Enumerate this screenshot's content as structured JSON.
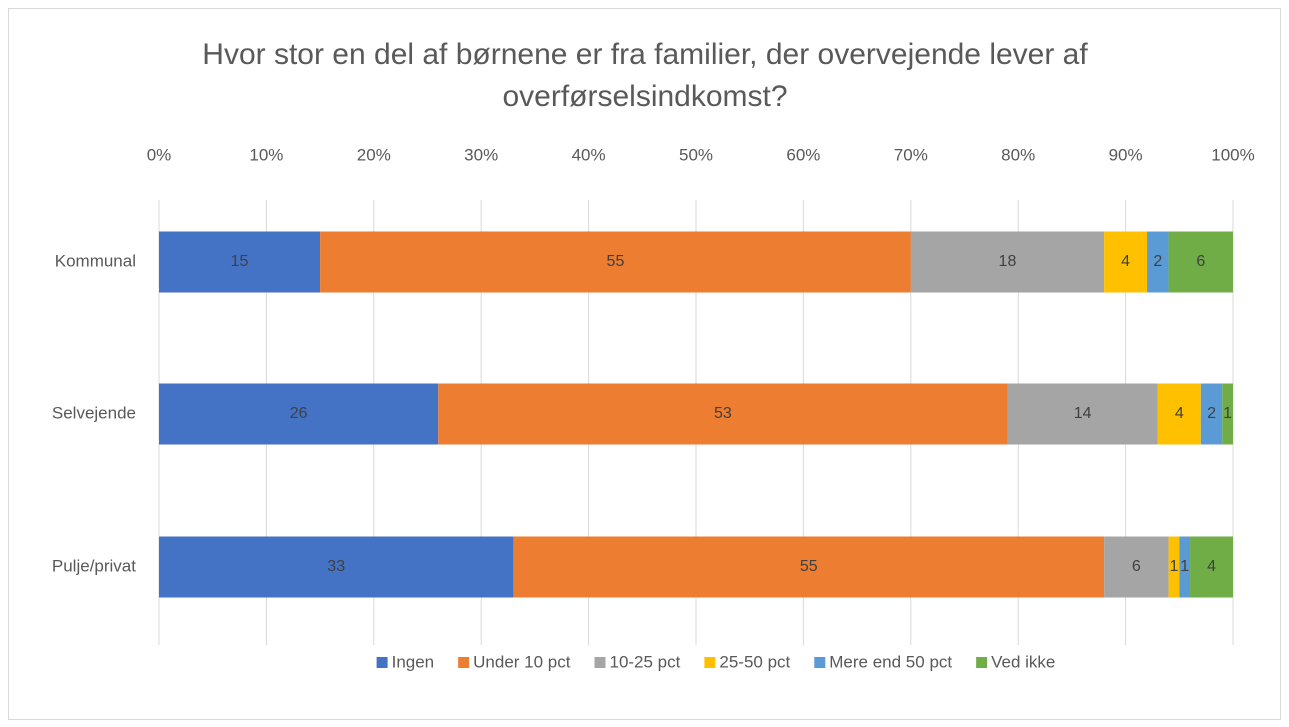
{
  "chart_data": {
    "type": "stacked-bar-horizontal",
    "title": "Hvor stor en del af børnene er fra familier, der overvejende lever af overførselsindkomst?",
    "categories": [
      "Kommunal",
      "Selvejende",
      "Pulje/privat"
    ],
    "series": [
      {
        "name": "Ingen",
        "color": "#4472c4",
        "values": [
          15,
          26,
          33
        ]
      },
      {
        "name": "Under 10 pct",
        "color": "#ed7d31",
        "values": [
          55,
          53,
          55
        ]
      },
      {
        "name": "10-25 pct",
        "color": "#a5a5a5",
        "values": [
          18,
          14,
          6
        ]
      },
      {
        "name": "25-50 pct",
        "color": "#ffc000",
        "values": [
          4,
          4,
          1
        ]
      },
      {
        "name": "Mere end 50 pct",
        "color": "#5b9bd5",
        "values": [
          2,
          2,
          1
        ]
      },
      {
        "name": "Ved ikke",
        "color": "#70ad47",
        "values": [
          6,
          1,
          4
        ]
      }
    ],
    "xlim": [
      0,
      100
    ],
    "xticks": [
      {
        "value": 0,
        "label": "0%"
      },
      {
        "value": 10,
        "label": "10%"
      },
      {
        "value": 20,
        "label": "20%"
      },
      {
        "value": 30,
        "label": "30%"
      },
      {
        "value": 40,
        "label": "40%"
      },
      {
        "value": 50,
        "label": "50%"
      },
      {
        "value": 60,
        "label": "60%"
      },
      {
        "value": 70,
        "label": "70%"
      },
      {
        "value": 80,
        "label": "80%"
      },
      {
        "value": 90,
        "label": "90%"
      },
      {
        "value": 100,
        "label": "100%"
      }
    ],
    "grid": true,
    "legend": "bottom"
  }
}
